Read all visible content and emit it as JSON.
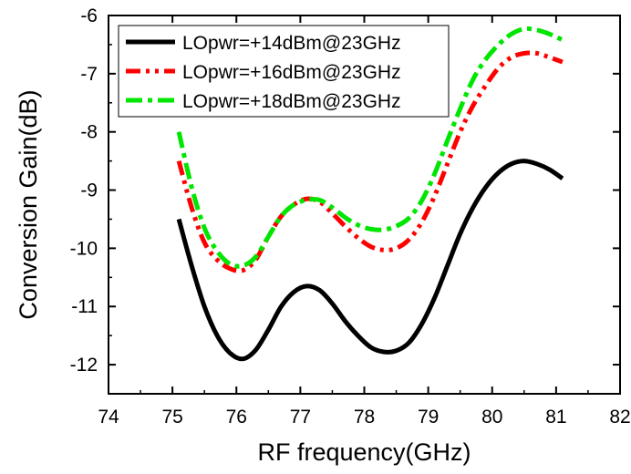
{
  "chart_data": {
    "type": "line",
    "xlabel": "RF frequency(GHz)",
    "ylabel": "Conversion Gain(dB)",
    "xlim": [
      74,
      82
    ],
    "ylim": [
      -12.5,
      -6
    ],
    "xticks": [
      74,
      75,
      76,
      77,
      78,
      79,
      80,
      81,
      82
    ],
    "xtick_labels": [
      "74",
      "75",
      "76",
      "77",
      "78",
      "79",
      "80",
      "81",
      "82"
    ],
    "yticks": [
      -12,
      -11,
      -10,
      -9,
      -8,
      -7,
      -6
    ],
    "ytick_labels": [
      "-12",
      "-11",
      "-10",
      "-9",
      "-8",
      "-7",
      "-6"
    ],
    "grid": false,
    "legend_position": "top-left",
    "series": [
      {
        "name": "LOpwr=+14dBm@23GHz",
        "color": "#000000",
        "style": "solid",
        "x": [
          75.1,
          75.3,
          75.5,
          75.7,
          75.9,
          76.1,
          76.3,
          76.5,
          76.7,
          76.9,
          77.1,
          77.3,
          77.5,
          77.7,
          77.9,
          78.1,
          78.3,
          78.5,
          78.7,
          78.9,
          79.1,
          79.3,
          79.5,
          79.7,
          79.9,
          80.1,
          80.3,
          80.5,
          80.7,
          80.9,
          81.1
        ],
        "y": [
          -9.5,
          -10.3,
          -11.0,
          -11.5,
          -11.8,
          -11.9,
          -11.75,
          -11.4,
          -11.0,
          -10.75,
          -10.65,
          -10.72,
          -10.95,
          -11.25,
          -11.5,
          -11.7,
          -11.78,
          -11.76,
          -11.62,
          -11.3,
          -10.85,
          -10.3,
          -9.75,
          -9.3,
          -8.95,
          -8.7,
          -8.55,
          -8.5,
          -8.55,
          -8.65,
          -8.8
        ]
      },
      {
        "name": "LOpwr=+16dBm@23GHz",
        "color": "#ff0000",
        "style": "dash-dot-dot",
        "x": [
          75.1,
          75.3,
          75.5,
          75.7,
          75.9,
          76.1,
          76.3,
          76.5,
          76.7,
          76.9,
          77.1,
          77.3,
          77.5,
          77.7,
          77.9,
          78.1,
          78.3,
          78.5,
          78.7,
          78.9,
          79.1,
          79.3,
          79.5,
          79.7,
          79.9,
          80.1,
          80.3,
          80.5,
          80.7,
          80.9,
          81.1
        ],
        "y": [
          -8.5,
          -9.3,
          -9.9,
          -10.2,
          -10.35,
          -10.38,
          -10.2,
          -9.8,
          -9.45,
          -9.25,
          -9.15,
          -9.2,
          -9.4,
          -9.62,
          -9.82,
          -9.97,
          -10.03,
          -10.0,
          -9.85,
          -9.55,
          -9.1,
          -8.55,
          -8.0,
          -7.55,
          -7.2,
          -6.9,
          -6.72,
          -6.65,
          -6.65,
          -6.72,
          -6.8
        ]
      },
      {
        "name": "LOpwr=+18dBm@23GHz",
        "color": "#00e600",
        "style": "dash-dot",
        "x": [
          75.1,
          75.3,
          75.5,
          75.7,
          75.9,
          76.1,
          76.3,
          76.5,
          76.7,
          76.9,
          77.1,
          77.3,
          77.5,
          77.7,
          77.9,
          78.1,
          78.3,
          78.5,
          78.7,
          78.9,
          79.1,
          79.3,
          79.5,
          79.7,
          79.9,
          80.1,
          80.3,
          80.5,
          80.7,
          80.9,
          81.1
        ],
        "y": [
          -8.0,
          -8.95,
          -9.65,
          -10.05,
          -10.27,
          -10.3,
          -10.15,
          -9.8,
          -9.45,
          -9.25,
          -9.17,
          -9.17,
          -9.3,
          -9.47,
          -9.6,
          -9.67,
          -9.68,
          -9.62,
          -9.48,
          -9.18,
          -8.72,
          -8.15,
          -7.6,
          -7.1,
          -6.75,
          -6.5,
          -6.32,
          -6.23,
          -6.25,
          -6.32,
          -6.42
        ]
      }
    ]
  }
}
